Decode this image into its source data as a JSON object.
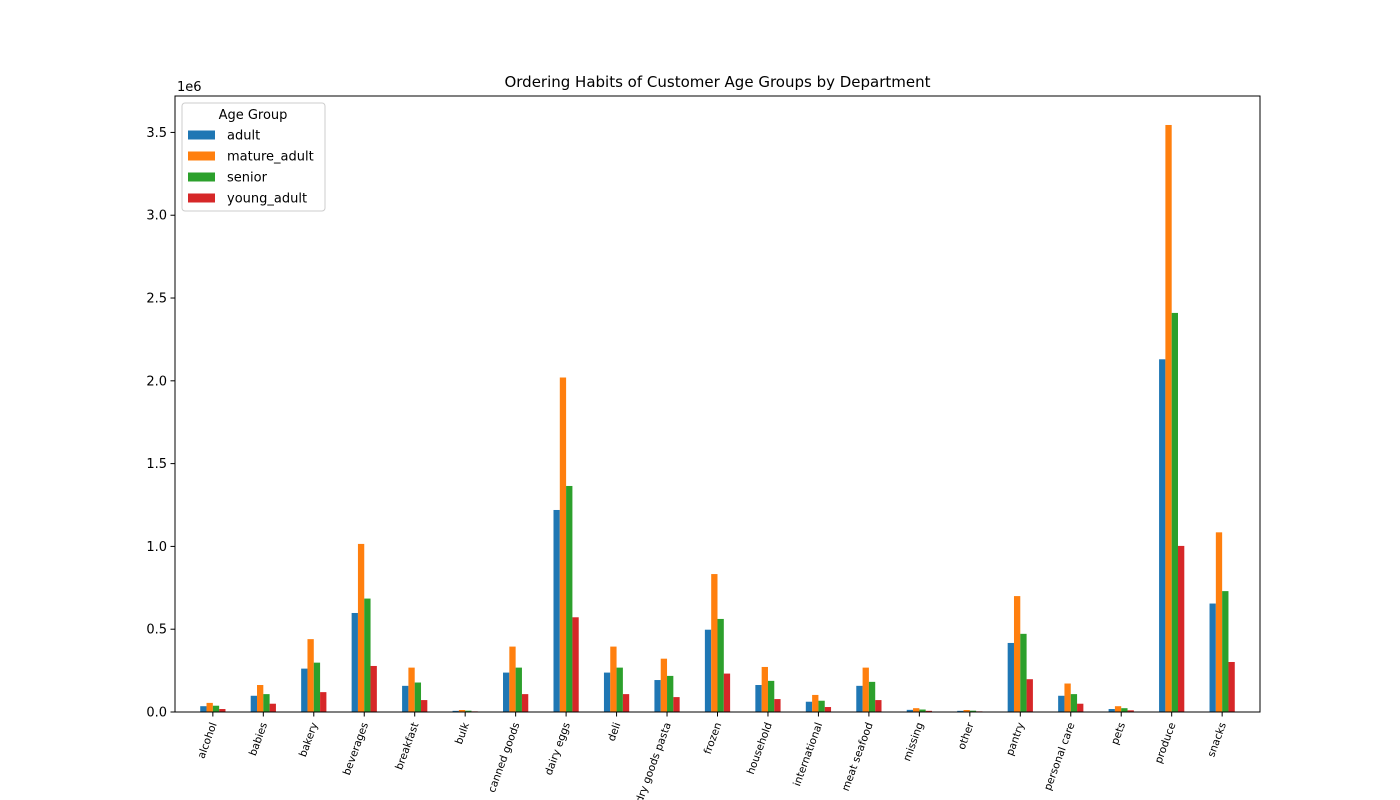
{
  "chart_data": {
    "type": "bar",
    "title": "Ordering Habits of Customer Age Groups by Department",
    "xlabel": "",
    "ylabel": "",
    "y_offset_label": "1e6",
    "ylim": [
      0,
      3.72
    ],
    "yticks": [
      0.0,
      0.5,
      1.0,
      1.5,
      2.0,
      2.5,
      3.0,
      3.5
    ],
    "ytick_labels": [
      "0.0",
      "0.5",
      "1.0",
      "1.5",
      "2.0",
      "2.5",
      "3.0",
      "3.5"
    ],
    "grid": false,
    "legend": {
      "title": "Age Group",
      "placement": "top-left"
    },
    "categories": [
      "alcohol",
      "babies",
      "bakery",
      "beverages",
      "breakfast",
      "bulk",
      "canned goods",
      "dairy eggs",
      "deli",
      "dry goods pasta",
      "frozen",
      "household",
      "international",
      "meat seafood",
      "missing",
      "other",
      "pantry",
      "personal care",
      "pets",
      "produce",
      "snacks"
    ],
    "series": [
      {
        "name": "adult",
        "color": "#1f77b4",
        "values": [
          0.035,
          0.098,
          0.262,
          0.598,
          0.158,
          0.007,
          0.238,
          1.22,
          0.238,
          0.193,
          0.497,
          0.163,
          0.062,
          0.158,
          0.013,
          0.007,
          0.417,
          0.098,
          0.018,
          2.13,
          0.655
        ]
      },
      {
        "name": "mature_adult",
        "color": "#ff7f0e",
        "values": [
          0.055,
          0.163,
          0.44,
          1.015,
          0.268,
          0.012,
          0.395,
          2.02,
          0.395,
          0.322,
          0.833,
          0.272,
          0.103,
          0.268,
          0.023,
          0.012,
          0.7,
          0.172,
          0.035,
          3.545,
          1.085
        ]
      },
      {
        "name": "senior",
        "color": "#2ca02c",
        "values": [
          0.038,
          0.108,
          0.298,
          0.685,
          0.178,
          0.008,
          0.268,
          1.365,
          0.268,
          0.218,
          0.562,
          0.188,
          0.068,
          0.182,
          0.015,
          0.008,
          0.472,
          0.108,
          0.023,
          2.41,
          0.73
        ]
      },
      {
        "name": "young_adult",
        "color": "#d62728",
        "values": [
          0.018,
          0.05,
          0.12,
          0.278,
          0.072,
          0.004,
          0.108,
          0.572,
          0.108,
          0.09,
          0.232,
          0.078,
          0.03,
          0.072,
          0.007,
          0.004,
          0.198,
          0.05,
          0.01,
          1.003,
          0.302
        ]
      }
    ]
  }
}
